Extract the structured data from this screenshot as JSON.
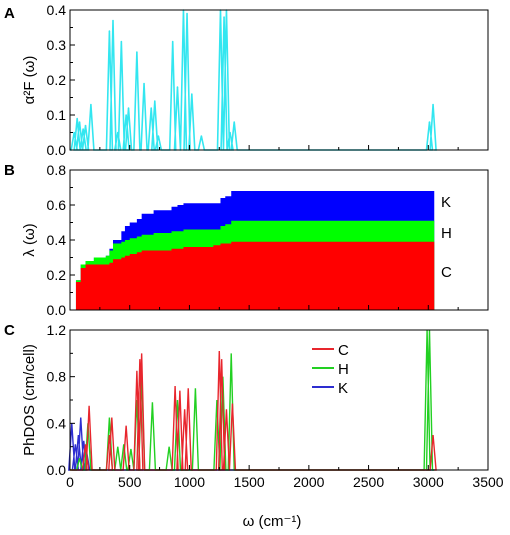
{
  "figure": {
    "panel_letters": [
      "A",
      "B",
      "C"
    ],
    "x_axis_label": "ω (cm⁻¹)"
  },
  "chart_data": [
    {
      "type": "line",
      "panel": "A",
      "ylabel": "α²F (ω)",
      "xlim": [
        0,
        3500
      ],
      "ylim": [
        0,
        0.4
      ],
      "xticks": [
        0,
        500,
        1000,
        1500,
        2000,
        2500,
        3000,
        3500
      ],
      "yticks": [
        "0.0",
        "0.1",
        "0.2",
        "0.3",
        "0.4"
      ],
      "color": "#33e6f0",
      "peaks": [
        {
          "x": 35,
          "y": 0.05
        },
        {
          "x": 60,
          "y": 0.09
        },
        {
          "x": 80,
          "y": 0.08
        },
        {
          "x": 110,
          "y": 0.06
        },
        {
          "x": 130,
          "y": 0.07
        },
        {
          "x": 175,
          "y": 0.13
        },
        {
          "x": 330,
          "y": 0.34
        },
        {
          "x": 360,
          "y": 0.37
        },
        {
          "x": 400,
          "y": 0.05
        },
        {
          "x": 430,
          "y": 0.31
        },
        {
          "x": 470,
          "y": 0.1
        },
        {
          "x": 490,
          "y": 0.12
        },
        {
          "x": 560,
          "y": 0.28
        },
        {
          "x": 620,
          "y": 0.19
        },
        {
          "x": 680,
          "y": 0.12
        },
        {
          "x": 710,
          "y": 0.14
        },
        {
          "x": 740,
          "y": 0.04
        },
        {
          "x": 860,
          "y": 0.31
        },
        {
          "x": 900,
          "y": 0.18
        },
        {
          "x": 950,
          "y": 0.4
        },
        {
          "x": 980,
          "y": 0.39
        },
        {
          "x": 1020,
          "y": 0.16
        },
        {
          "x": 1100,
          "y": 0.04
        },
        {
          "x": 1260,
          "y": 0.4
        },
        {
          "x": 1290,
          "y": 0.38
        },
        {
          "x": 1310,
          "y": 0.4
        },
        {
          "x": 1340,
          "y": 0.05
        },
        {
          "x": 1375,
          "y": 0.08
        },
        {
          "x": 3010,
          "y": 0.08
        },
        {
          "x": 3040,
          "y": 0.13
        }
      ]
    },
    {
      "type": "area",
      "panel": "B",
      "ylabel": "λ (ω)",
      "xlim": [
        0,
        3500
      ],
      "ylim": [
        0,
        0.8
      ],
      "xticks": [
        0,
        500,
        1000,
        1500,
        2000,
        2500,
        3000,
        3500
      ],
      "yticks": [
        "0.0",
        "0.2",
        "0.4",
        "0.6",
        "0.8"
      ],
      "x": [
        0,
        50,
        90,
        130,
        200,
        300,
        330,
        360,
        430,
        460,
        500,
        560,
        600,
        700,
        850,
        900,
        950,
        1000,
        1200,
        1260,
        1300,
        1350,
        1500,
        3050
      ],
      "series": [
        {
          "name": "C",
          "color": "#ff0000",
          "values": [
            0,
            0.16,
            0.24,
            0.26,
            0.26,
            0.26,
            0.27,
            0.29,
            0.3,
            0.31,
            0.32,
            0.33,
            0.34,
            0.34,
            0.35,
            0.35,
            0.36,
            0.36,
            0.37,
            0.38,
            0.38,
            0.39,
            0.39,
            0.39
          ]
        },
        {
          "name": "H",
          "color": "#00ff00",
          "values": [
            0,
            0.17,
            0.26,
            0.28,
            0.3,
            0.31,
            0.34,
            0.38,
            0.39,
            0.4,
            0.41,
            0.42,
            0.43,
            0.44,
            0.45,
            0.45,
            0.46,
            0.46,
            0.46,
            0.48,
            0.49,
            0.51,
            0.51,
            0.51
          ]
        },
        {
          "name": "K",
          "color": "#0000ff",
          "values": [
            0,
            0.17,
            0.26,
            0.28,
            0.3,
            0.31,
            0.35,
            0.4,
            0.45,
            0.48,
            0.5,
            0.52,
            0.55,
            0.57,
            0.59,
            0.6,
            0.61,
            0.61,
            0.61,
            0.64,
            0.65,
            0.68,
            0.68,
            0.68
          ]
        }
      ],
      "band_labels": [
        "K",
        "H",
        "C"
      ]
    },
    {
      "type": "line",
      "panel": "C",
      "ylabel": "PhDOS (cm/cell)",
      "xlim": [
        0,
        3500
      ],
      "ylim": [
        0,
        1.2
      ],
      "xticks": [
        "0",
        "500",
        "1000",
        "1500",
        "2000",
        "2500",
        "3000",
        "3500"
      ],
      "yticks": [
        "0.0",
        "0.4",
        "0.8",
        "1.2"
      ],
      "legend": {
        "position": "top-center",
        "entries": [
          "C",
          "H",
          "K"
        ]
      },
      "series": [
        {
          "name": "C",
          "color": "#e8262d",
          "peaks": [
            {
              "x": 130,
              "y": 0.22
            },
            {
              "x": 160,
              "y": 0.55
            },
            {
              "x": 330,
              "y": 0.3
            },
            {
              "x": 350,
              "y": 0.45
            },
            {
              "x": 470,
              "y": 0.38
            },
            {
              "x": 560,
              "y": 0.85
            },
            {
              "x": 585,
              "y": 0.95
            },
            {
              "x": 600,
              "y": 1.0
            },
            {
              "x": 880,
              "y": 0.72
            },
            {
              "x": 920,
              "y": 0.68
            },
            {
              "x": 960,
              "y": 0.52
            },
            {
              "x": 990,
              "y": 0.7
            },
            {
              "x": 1250,
              "y": 1.02
            },
            {
              "x": 1270,
              "y": 0.95
            },
            {
              "x": 1310,
              "y": 0.52
            },
            {
              "x": 1360,
              "y": 0.57
            },
            {
              "x": 3040,
              "y": 0.3
            }
          ]
        },
        {
          "name": "H",
          "color": "#22d022",
          "peaks": [
            {
              "x": 80,
              "y": 0.1
            },
            {
              "x": 150,
              "y": 0.4
            },
            {
              "x": 330,
              "y": 0.45
            },
            {
              "x": 400,
              "y": 0.2
            },
            {
              "x": 450,
              "y": 0.22
            },
            {
              "x": 510,
              "y": 0.18
            },
            {
              "x": 560,
              "y": 0.6
            },
            {
              "x": 600,
              "y": 0.8
            },
            {
              "x": 690,
              "y": 0.58
            },
            {
              "x": 830,
              "y": 0.2
            },
            {
              "x": 900,
              "y": 0.6
            },
            {
              "x": 1050,
              "y": 0.7
            },
            {
              "x": 1230,
              "y": 0.6
            },
            {
              "x": 1280,
              "y": 0.8
            },
            {
              "x": 1350,
              "y": 1.0
            },
            {
              "x": 2990,
              "y": 1.2
            },
            {
              "x": 3010,
              "y": 1.2
            }
          ]
        },
        {
          "name": "K",
          "color": "#2d2dd0",
          "peaks": [
            {
              "x": 15,
              "y": 0.4
            },
            {
              "x": 45,
              "y": 0.22
            },
            {
              "x": 70,
              "y": 0.3
            },
            {
              "x": 90,
              "y": 0.45
            },
            {
              "x": 115,
              "y": 0.25
            },
            {
              "x": 140,
              "y": 0.15
            }
          ]
        }
      ]
    }
  ]
}
